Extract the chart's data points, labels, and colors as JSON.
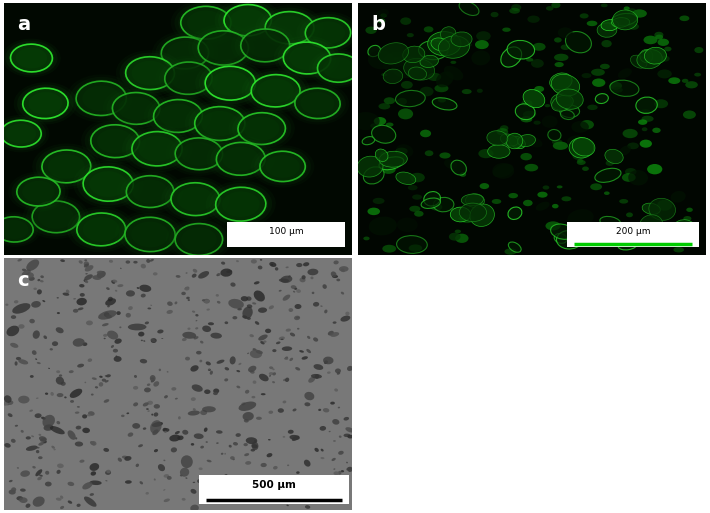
{
  "layout": {
    "figsize": [
      7.1,
      5.13
    ],
    "dpi": 100,
    "facecolor": "#ffffff"
  },
  "panels": [
    {
      "label": "a",
      "bg_color": "#010801",
      "scalebar_text": "100 μm",
      "label_color": "#ffffff"
    },
    {
      "label": "b",
      "bg_color": "#010601",
      "scalebar_text": "200 μm",
      "label_color": "#ffffff"
    },
    {
      "label": "c",
      "bg_color": "#787878",
      "scalebar_text": "500 μm",
      "label_color": "#ffffff"
    }
  ],
  "green_bright": [
    0.2,
    1.0,
    0.2
  ],
  "green_mid": [
    0.05,
    0.55,
    0.05
  ],
  "green_dim": [
    0.02,
    0.22,
    0.02
  ],
  "green_glow": [
    0.08,
    0.4,
    0.08
  ]
}
